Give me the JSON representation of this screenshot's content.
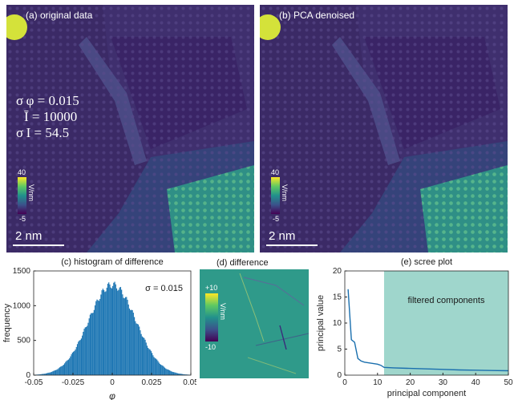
{
  "panel_a": {
    "label": "(a) original data",
    "stats": {
      "line1": "σ φ = 0.015",
      "line2": "Ī = 10000",
      "line3": "σ I = 54.5"
    },
    "colorbar": {
      "max": "40",
      "min": "-5",
      "unit": "V/nm"
    },
    "scalebar_label": "2 nm"
  },
  "panel_b": {
    "label": "(b) PCA denoised",
    "colorbar": {
      "max": "40",
      "min": "-5",
      "unit": "V/nm"
    },
    "scalebar_label": "2 nm"
  },
  "panel_d": {
    "title": "(d) difference",
    "colorbar": {
      "max": "+10",
      "min": "-10",
      "unit": "V/nm"
    }
  },
  "colors": {
    "histogram": "#1f77b4",
    "scree_line": "#1a6fae",
    "filtered_band": "#9fd6cc",
    "map_bg": "#3f2c6c",
    "diff_bg": "#2f9a8a"
  },
  "chart_data": [
    {
      "type": "bar",
      "title": "(c) histogram of difference",
      "xlabel": "φ",
      "ylabel": "frequency",
      "annotation": "σ = 0.015",
      "xlim": [
        -0.05,
        0.05
      ],
      "ylim": [
        0,
        1500
      ],
      "xticks": [
        "-0.05",
        "-0.025",
        "0",
        "0.025",
        "0.05"
      ],
      "yticks": [
        "0",
        "500",
        "1000",
        "1500"
      ],
      "mean": 0.0,
      "sigma": 0.015,
      "peak": 1300
    },
    {
      "type": "line",
      "title": "(e) scree plot",
      "xlabel": "principal component",
      "ylabel": "principal value",
      "annotation": "filtered components",
      "xlim": [
        0,
        50
      ],
      "ylim": [
        0,
        20
      ],
      "xticks": [
        "0",
        "10",
        "20",
        "30",
        "40",
        "50"
      ],
      "yticks": [
        "0",
        "5",
        "10",
        "15",
        "20"
      ],
      "filtered_from": 12,
      "x": [
        1,
        2,
        3,
        4,
        5,
        6,
        8,
        10,
        11,
        12,
        15,
        20,
        25,
        30,
        35,
        40,
        45,
        50
      ],
      "y": [
        16.5,
        6.8,
        6.3,
        3.2,
        2.7,
        2.5,
        2.3,
        2.1,
        1.9,
        1.5,
        1.4,
        1.3,
        1.2,
        1.1,
        1.0,
        0.95,
        0.9,
        0.85
      ]
    }
  ]
}
